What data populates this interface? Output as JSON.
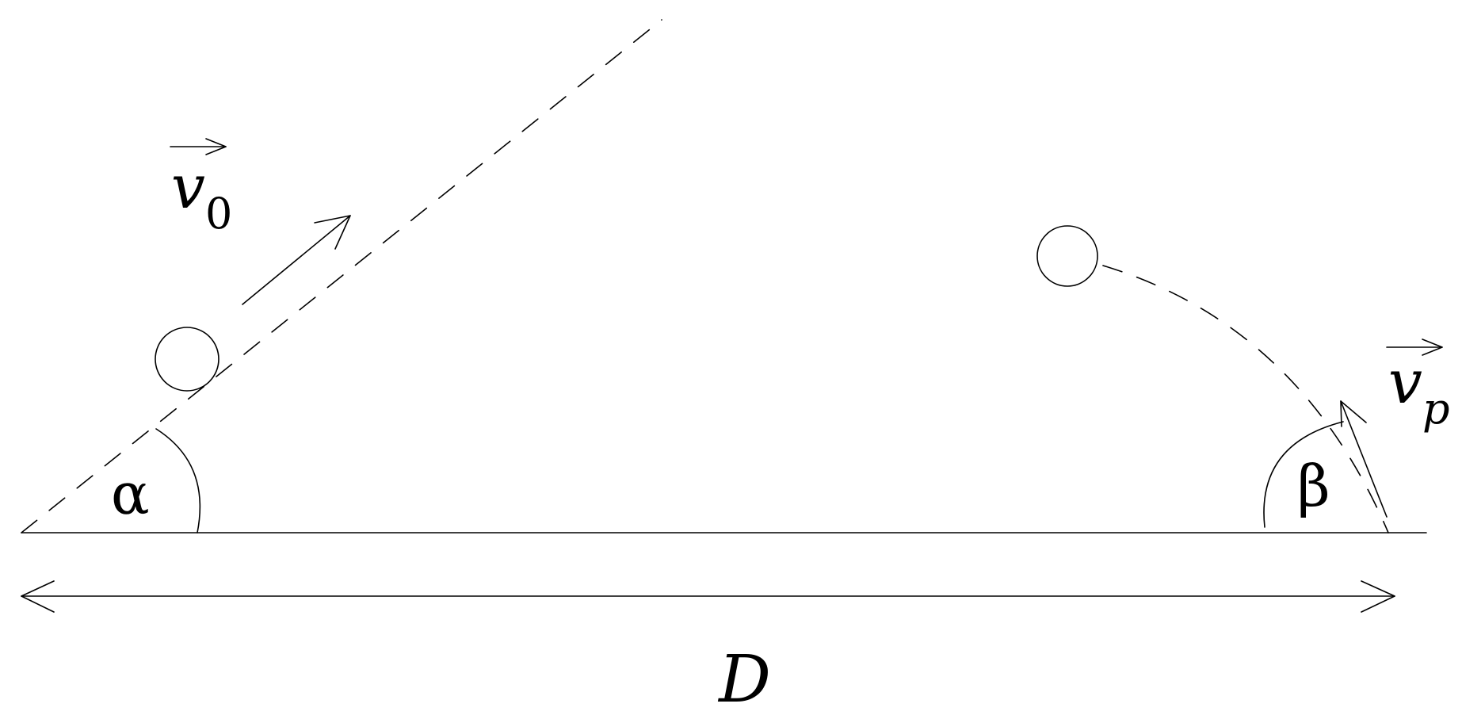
{
  "labels": {
    "initial_velocity_symbol": "v",
    "initial_velocity_subscript": "0",
    "final_velocity_symbol": "v",
    "final_velocity_subscript": "p",
    "launch_angle": "α",
    "impact_angle": "β",
    "distance": "D"
  },
  "colors": {
    "line": "#000000",
    "background": "#ffffff"
  }
}
